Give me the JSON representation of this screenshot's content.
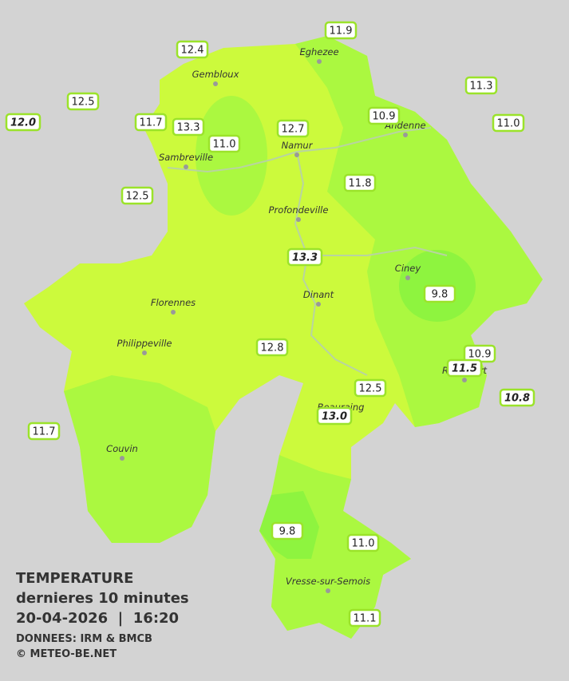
{
  "legend": {
    "title": "TEMPERATURE",
    "subtitle": "dernieres 10 minutes",
    "datetime": "20-04-2026  |  16:20",
    "source": "DONNEES: IRM & BMCB",
    "copyright": "© METEO-BE.NET"
  },
  "cities": [
    "Eghezee",
    "Gembloux",
    "Andenne",
    "Namur",
    "Sambreville",
    "Profondeville",
    "Ciney",
    "Dinant",
    "Florennes",
    "Philippeville",
    "Rochefort",
    "Beauraing",
    "Couvin",
    "Vresse-sur-Semois"
  ],
  "stations": [
    {
      "value": "11.9"
    },
    {
      "value": "12.4"
    },
    {
      "value": "12.5"
    },
    {
      "value": "12.0",
      "italic": true
    },
    {
      "value": "11.7"
    },
    {
      "value": "13.3"
    },
    {
      "value": "11.0"
    },
    {
      "value": "12.7"
    },
    {
      "value": "10.9"
    },
    {
      "value": "11.3"
    },
    {
      "value": "11.0"
    },
    {
      "value": "11.8"
    },
    {
      "value": "12.5"
    },
    {
      "value": "13.3",
      "italic": true
    },
    {
      "value": "9.8"
    },
    {
      "value": "12.8"
    },
    {
      "value": "10.9"
    },
    {
      "value": "11.5",
      "italic": true
    },
    {
      "value": "12.5"
    },
    {
      "value": "13.0",
      "italic": true
    },
    {
      "value": "10.8",
      "italic": true
    },
    {
      "value": "11.7"
    },
    {
      "value": "9.8"
    },
    {
      "value": "11.0"
    },
    {
      "value": "11.1"
    }
  ]
}
